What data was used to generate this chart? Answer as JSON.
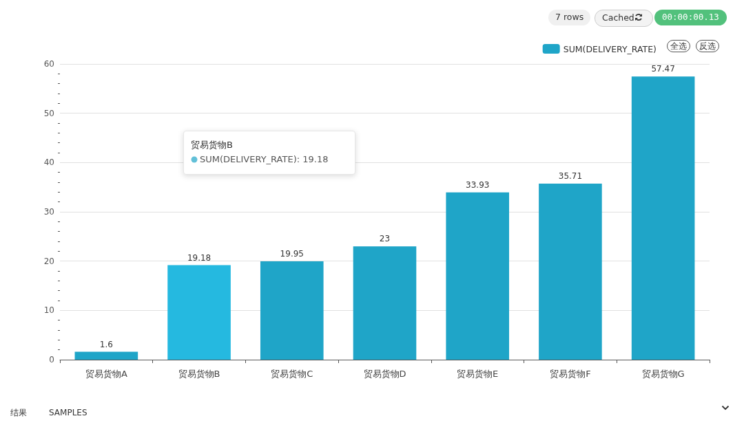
{
  "chart_data": {
    "type": "bar",
    "categories": [
      "贸易货物A",
      "贸易货物B",
      "贸易货物C",
      "贸易货物D",
      "贸易货物E",
      "贸易货物F",
      "贸易货物G"
    ],
    "series": [
      {
        "name": "SUM(DELIVERY_RATE)",
        "color": "#1fa5c8",
        "colors": [
          "#1fa5c8",
          "#25b9e0",
          "#1fa5c8",
          "#1fa5c8",
          "#1fa5c8",
          "#1fa5c8",
          "#1fa5c8"
        ],
        "values": [
          1.6,
          19.18,
          19.95,
          23,
          33.93,
          35.71,
          57.47
        ]
      }
    ],
    "ylim": [
      0,
      60
    ],
    "yticks": [
      0,
      10,
      20,
      30,
      40,
      50,
      60
    ],
    "grid": "y",
    "legend": "top right",
    "data_labels": true,
    "annotations": [
      "7 rows",
      "Cached",
      "00:00:00.13",
      "全选",
      "反选",
      "贸易货物B",
      "SUM(DELIVERY_RATE): 19.18",
      "结果",
      "SAMPLES"
    ]
  }
}
